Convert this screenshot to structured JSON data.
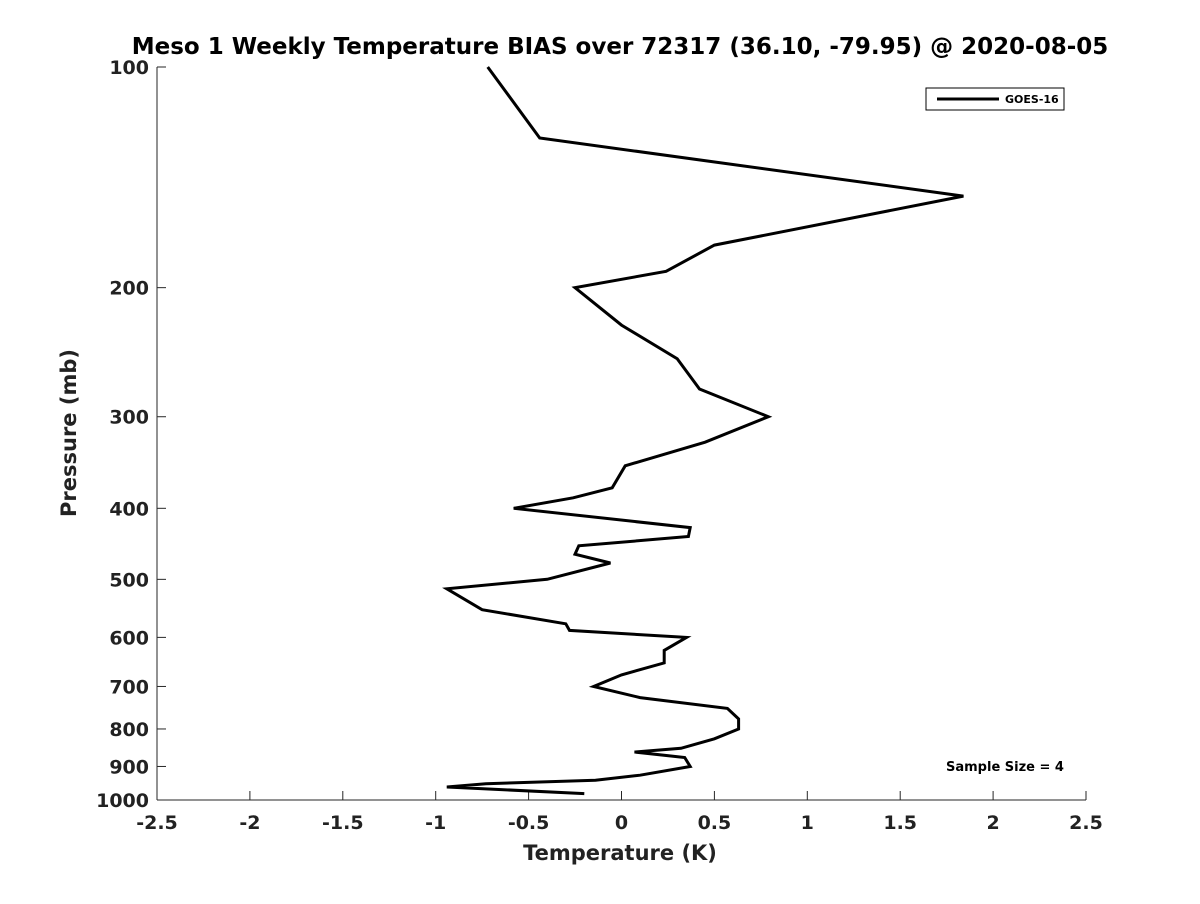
{
  "chart_data": {
    "type": "line",
    "title": "Meso 1 Weekly Temperature BIAS over 72317 (36.10, -79.95) @ 2020-08-05",
    "xlabel": "Temperature (K)",
    "ylabel": "Pressure (mb)",
    "xlim": [
      -2.5,
      2.5
    ],
    "ylim": [
      1000,
      100
    ],
    "y_scale": "log",
    "y_reversed": true,
    "xticks": [
      "-2.5",
      "-2",
      "-1.5",
      "-1",
      "-0.5",
      "0",
      "0.5",
      "1",
      "1.5",
      "2",
      "2.5"
    ],
    "xtick_values": [
      -2.5,
      -2,
      -1.5,
      -1,
      -0.5,
      0,
      0.5,
      1,
      1.5,
      2,
      2.5
    ],
    "yticks": [
      "100",
      "200",
      "300",
      "400",
      "500",
      "600",
      "700",
      "800",
      "900",
      "1000"
    ],
    "ytick_values": [
      100,
      200,
      300,
      400,
      500,
      600,
      700,
      800,
      900,
      1000
    ],
    "grid": false,
    "legend_position": "top-right",
    "series": [
      {
        "name": "GOES-16",
        "color": "#000000",
        "points": [
          [
            -0.72,
            100
          ],
          [
            -0.44,
            125
          ],
          [
            1.84,
            150
          ],
          [
            0.5,
            175
          ],
          [
            0.24,
            190
          ],
          [
            -0.25,
            200
          ],
          [
            0.0,
            225
          ],
          [
            0.3,
            250
          ],
          [
            0.42,
            275
          ],
          [
            0.79,
            300
          ],
          [
            0.45,
            325
          ],
          [
            0.02,
            350
          ],
          [
            -0.05,
            375
          ],
          [
            -0.26,
            387
          ],
          [
            -0.58,
            400
          ],
          [
            0.37,
            425
          ],
          [
            0.36,
            437
          ],
          [
            -0.23,
            450
          ],
          [
            -0.25,
            462
          ],
          [
            -0.06,
            475
          ],
          [
            -0.4,
            500
          ],
          [
            -0.94,
            515
          ],
          [
            -0.75,
            550
          ],
          [
            -0.3,
            575
          ],
          [
            -0.28,
            587
          ],
          [
            0.35,
            600
          ],
          [
            0.23,
            625
          ],
          [
            0.23,
            650
          ],
          [
            0.0,
            675
          ],
          [
            -0.15,
            700
          ],
          [
            0.1,
            725
          ],
          [
            0.57,
            750
          ],
          [
            0.63,
            775
          ],
          [
            0.63,
            800
          ],
          [
            0.5,
            825
          ],
          [
            0.32,
            850
          ],
          [
            0.07,
            860
          ],
          [
            0.34,
            875
          ],
          [
            0.37,
            900
          ],
          [
            0.1,
            925
          ],
          [
            -0.14,
            940
          ],
          [
            -0.73,
            950
          ],
          [
            -0.94,
            960
          ],
          [
            -0.2,
            980
          ]
        ]
      }
    ],
    "annotations": [
      "Sample Size = 4"
    ]
  }
}
